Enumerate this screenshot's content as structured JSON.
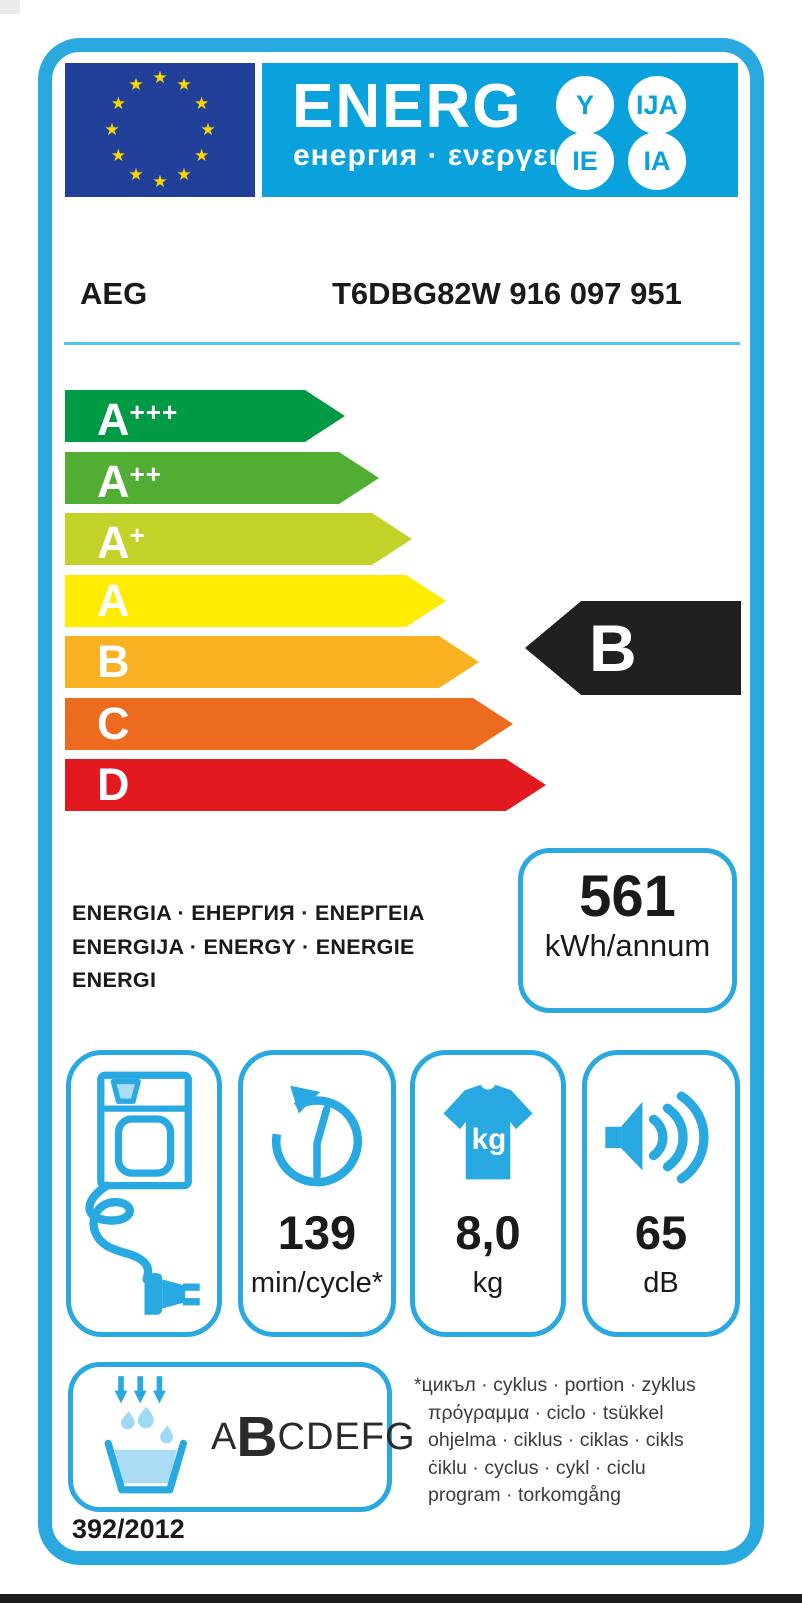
{
  "header": {
    "energ_word": "ENERG",
    "energ_subtitle": "енергия · ενεργεια",
    "badges": [
      "Y",
      "IJA",
      "IE",
      "IA"
    ]
  },
  "product": {
    "brand": "AEG",
    "model": "T6DBG82W  916 097 951"
  },
  "scale": [
    {
      "base": "A",
      "sup": "+++",
      "color": "#009a44"
    },
    {
      "base": "A",
      "sup": "++",
      "color": "#52ae32"
    },
    {
      "base": "A",
      "sup": "+",
      "color": "#c3d229"
    },
    {
      "base": "A",
      "sup": "",
      "color": "#ffec00"
    },
    {
      "base": "B",
      "sup": "",
      "color": "#f9b122"
    },
    {
      "base": "C",
      "sup": "",
      "color": "#ec6b1f"
    },
    {
      "base": "D",
      "sup": "",
      "color": "#e2191f"
    }
  ],
  "rating": {
    "class": "B"
  },
  "energy": {
    "value": "561",
    "unit": "kWh/annum"
  },
  "energy_words": [
    "ENERGIA · ЕНЕРГИЯ · ENEPΓEIA",
    "ENERGIJA · ENERGY · ENERGIE",
    "ENERGI"
  ],
  "metrics": {
    "cycle_time": {
      "value": "139",
      "unit": "min/cycle*"
    },
    "capacity": {
      "value": "8,0",
      "unit": "kg",
      "shirt_label": "kg"
    },
    "noise": {
      "value": "65",
      "unit": "dB"
    }
  },
  "condensation": {
    "before": "A",
    "current": "B",
    "after": "CDEFG"
  },
  "footnote_lines": [
    "*цикъл · cyklus · portion · zyklus",
    "πρόγραμμα · ciclo · tsükkel",
    "ohjelma · ciklus · ciklas · cikls",
    "ċiklu · cyclus · cykl · ciclu",
    "program · torkomgång"
  ],
  "regulation": "392/2012",
  "colors": {
    "border_blue": "#2aa9e1",
    "band_blue": "#0aa2dd",
    "flag_blue": "#20409a",
    "star_yellow": "#ffd500",
    "icon_blue": "#29a9e1",
    "water_blue": "#aadcf5",
    "rule_blue": "#56c3ec",
    "rating_black": "#221f20"
  }
}
